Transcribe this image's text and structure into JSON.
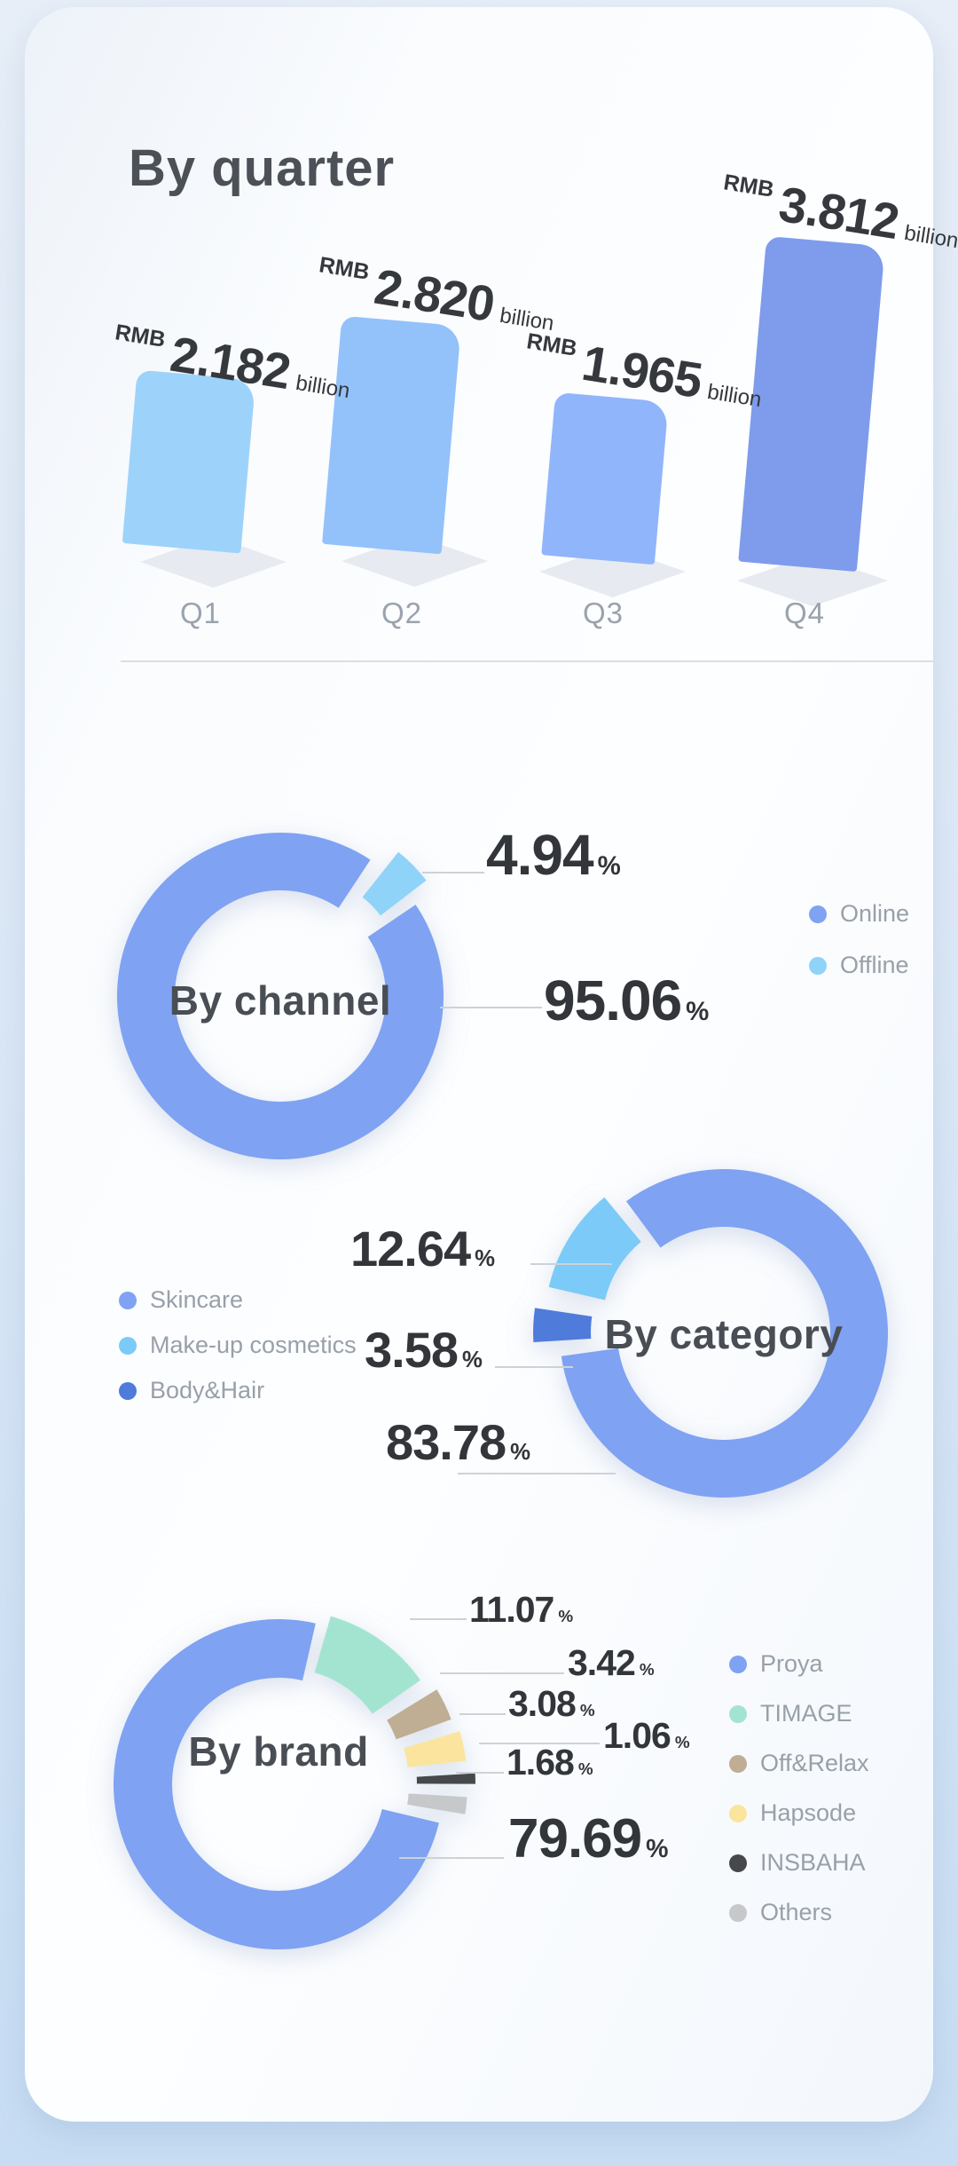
{
  "symbols": {
    "percent": "%"
  },
  "chart_data": [
    {
      "id": "quarter",
      "type": "bar",
      "title": "By quarter",
      "categories": [
        "Q1",
        "Q2",
        "Q3",
        "Q4"
      ],
      "values": [
        2.182,
        2.82,
        1.965,
        3.812
      ],
      "value_labels": [
        "2.182",
        "2.820",
        "1.965",
        "3.812"
      ],
      "unit_prefix": "RMB",
      "unit_suffix": "billion",
      "colors": [
        "#9DD3FA",
        "#93C2FB",
        "#91B5FB",
        "#7E9CEB"
      ],
      "ylim": [
        0,
        3.812
      ],
      "grid": "off",
      "ylabel": "",
      "xlabel": ""
    },
    {
      "id": "channel",
      "type": "pie",
      "center_label": "By channel",
      "legend_position": "right",
      "slices": [
        {
          "label": "Online",
          "value": 95.06,
          "pct_text": "95.06",
          "color": "#7FA2F2"
        },
        {
          "label": "Offline",
          "value": 4.94,
          "pct_text": "4.94",
          "color": "#8FD3F8"
        }
      ],
      "legend": [
        {
          "label": "Online",
          "color": "#7FA2F2"
        },
        {
          "label": "Offline",
          "color": "#8FD3F8"
        }
      ]
    },
    {
      "id": "category",
      "type": "pie",
      "center_label": "By category",
      "legend_position": "left",
      "slices": [
        {
          "label": "Skincare",
          "value": 83.78,
          "pct_text": "83.78",
          "color": "#7FA2F2"
        },
        {
          "label": "Make-up cosmetics",
          "value": 12.64,
          "pct_text": "12.64",
          "color": "#7CCAF7"
        },
        {
          "label": "Body&Hair",
          "value": 3.58,
          "pct_text": "3.58",
          "color": "#4F7BDA"
        }
      ],
      "legend": [
        {
          "label": "Skincare",
          "color": "#7FA2F2"
        },
        {
          "label": "Make-up cosmetics",
          "color": "#7CCAF7"
        },
        {
          "label": "Body&Hair",
          "color": "#4F7BDA"
        }
      ]
    },
    {
      "id": "brand",
      "type": "pie",
      "center_label": "By brand",
      "legend_position": "right",
      "slices": [
        {
          "label": "Proya",
          "value": 79.69,
          "pct_text": "79.69",
          "color": "#7FA2F2"
        },
        {
          "label": "TIMAGE",
          "value": 11.07,
          "pct_text": "11.07",
          "color": "#A3E4D1"
        },
        {
          "label": "Off&Relax",
          "value": 3.42,
          "pct_text": "3.42",
          "color": "#BFAE94"
        },
        {
          "label": "Hapsode",
          "value": 3.08,
          "pct_text": "3.08",
          "color": "#FBE49E"
        },
        {
          "label": "INSBAHA",
          "value": 1.06,
          "pct_text": "1.06",
          "color": "#47484B"
        },
        {
          "label": "Others",
          "value": 1.68,
          "pct_text": "1.68",
          "color": "#C6C8CA"
        }
      ],
      "legend": [
        {
          "label": "Proya",
          "color": "#7FA2F2"
        },
        {
          "label": "TIMAGE",
          "color": "#A3E4D1"
        },
        {
          "label": "Off&Relax",
          "color": "#BFAE94"
        },
        {
          "label": "Hapsode",
          "color": "#FBE49E"
        },
        {
          "label": "INSBAHA",
          "color": "#47484B"
        },
        {
          "label": "Others",
          "color": "#C6C8CA"
        }
      ]
    }
  ]
}
